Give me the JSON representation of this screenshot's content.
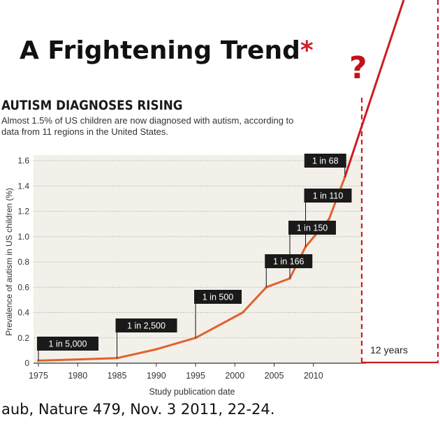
{
  "title": {
    "text": "A Frightening Trend",
    "asterisk": "*",
    "question_mark": "?"
  },
  "citation": "aub, Nature 479, Nov. 3 2011, 22-24.",
  "colors": {
    "series_line": "#e0632c",
    "projection_line": "#cc1b22",
    "label_box": "#1a1a1a",
    "label_text": "#ffffff",
    "plot_background": "#f3f0ea"
  },
  "chart_data": {
    "type": "line",
    "title": "AUTISM DIAGNOSES RISING",
    "subtitle": "Almost 1.5% of US children are now diagnosed with autism, according to data from 11 regions in the United States.",
    "xlabel": "Study publication date",
    "ylabel": "Prevalence of autism in US children (%)",
    "xlim": [
      1975,
      2015
    ],
    "ylim": [
      0,
      1.6
    ],
    "x_ticks": [
      1975,
      1980,
      1985,
      1990,
      1995,
      2000,
      2005,
      2010
    ],
    "y_ticks": [
      "0",
      "0.2",
      "0.4",
      "0.6",
      "0.8",
      "1.0",
      "1.2",
      "1.4",
      "1.6"
    ],
    "grid": true,
    "series": [
      {
        "x": [
          1975,
          1985,
          1990,
          1995,
          2001,
          2004,
          2007,
          2009,
          2012,
          2014
        ],
        "y": [
          0.02,
          0.04,
          0.11,
          0.2,
          0.4,
          0.6,
          0.67,
          0.92,
          1.14,
          1.47
        ]
      }
    ],
    "annotations": [
      {
        "text": "1 in 5,000",
        "x": 1975,
        "y": 0.02
      },
      {
        "text": "1 in 2,500",
        "x": 1985,
        "y": 0.04
      },
      {
        "text": "1 in 500",
        "x": 1995,
        "y": 0.2
      },
      {
        "text": "1 in 166",
        "x": 2004,
        "y": 0.6
      },
      {
        "text": "1 in 150",
        "x": 2007,
        "y": 0.67
      },
      {
        "text": "1 in 110",
        "x": 2009,
        "y": 0.92
      },
      {
        "text": "1 in 68",
        "x": 2014,
        "y": 1.47
      }
    ],
    "projection": {
      "label": "12 years"
    }
  }
}
